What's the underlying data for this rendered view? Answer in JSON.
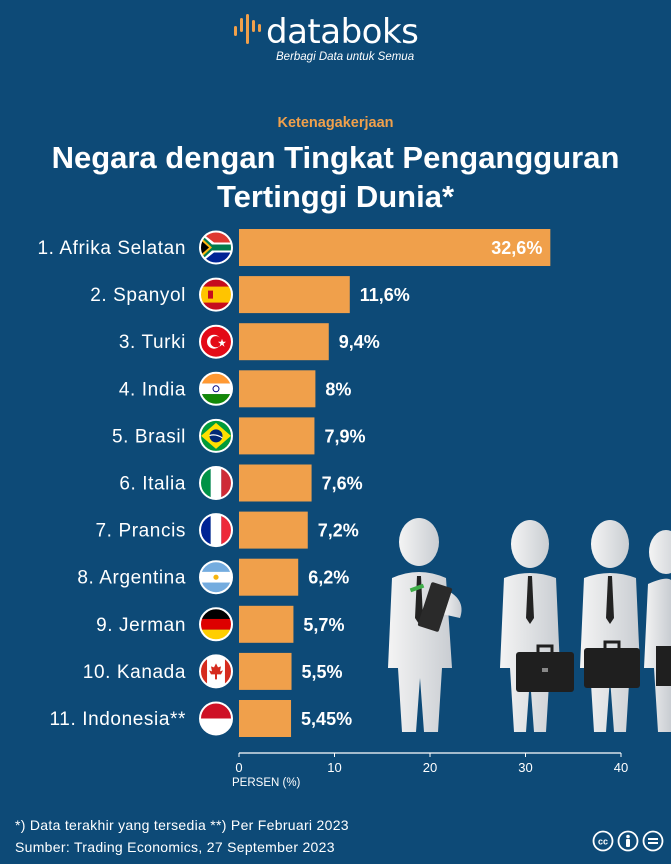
{
  "brand": {
    "name": "databoks",
    "tagline": "Berbagi Data untuk Semua",
    "accent_color": "#f0a04b",
    "background_color": "#0d4a77"
  },
  "category": "Ketenagakerjaan",
  "title_line1": "Negara dengan Tingkat Pengangguran",
  "title_line2": "Tertinggi Dunia*",
  "chart_data": {
    "type": "bar",
    "orientation": "horizontal",
    "categories": [
      "1. Afrika Selatan",
      "2. Spanyol",
      "3. Turki",
      "4. India",
      "5. Brasil",
      "6. Italia",
      "7. Prancis",
      "8. Argentina",
      "9. Jerman",
      "10. Kanada",
      "11. Indonesia**"
    ],
    "values": [
      32.6,
      11.6,
      9.4,
      8,
      7.9,
      7.6,
      7.2,
      6.2,
      5.7,
      5.5,
      5.45
    ],
    "value_labels": [
      "32,6%",
      "11,6%",
      "9,4%",
      "8%",
      "7,9%",
      "7,6%",
      "7,2%",
      "6,2%",
      "5,7%",
      "5,5%",
      "5,45%"
    ],
    "flags": [
      "south-africa-flag-icon",
      "spain-flag-icon",
      "turkey-flag-icon",
      "india-flag-icon",
      "brazil-flag-icon",
      "italy-flag-icon",
      "france-flag-icon",
      "argentina-flag-icon",
      "germany-flag-icon",
      "canada-flag-icon",
      "indonesia-flag-icon"
    ],
    "xlabel": "PERSEN (%)",
    "xlim": [
      0,
      40
    ],
    "xticks": [
      0,
      10,
      20,
      30,
      40
    ],
    "bar_color": "#f0a04b",
    "grid": false
  },
  "footnotes": {
    "line1": "*) Data terakhir yang tersedia  **) Per Februari 2023",
    "line2": "Sumber: Trading Economics, 27 September 2023"
  },
  "license_icons": [
    "cc-icon",
    "by-icon",
    "nd-icon"
  ]
}
